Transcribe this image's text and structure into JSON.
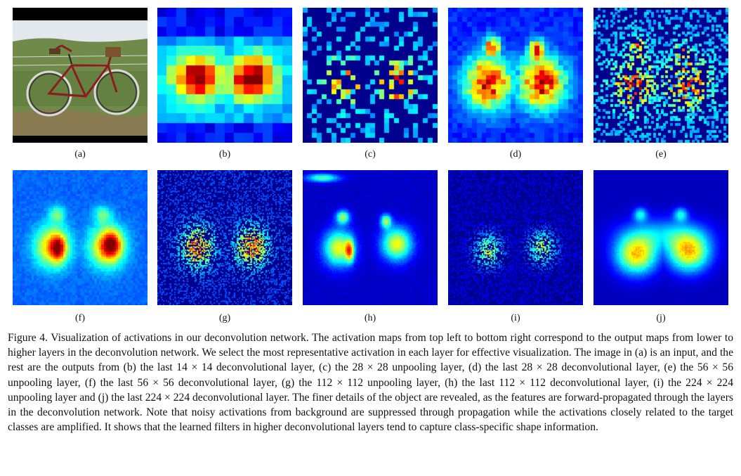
{
  "figure": {
    "panel_labels": [
      "(a)",
      "(b)",
      "(c)",
      "(d)",
      "(e)",
      "(f)",
      "(g)",
      "(h)",
      "(i)",
      "(j)"
    ],
    "caption": "Figure 4. Visualization of activations in our deconvolution network. The activation maps from top left to bottom right correspond to the output maps from lower to higher layers in the deconvolution network. We select the most representative activation in each layer for effective visualization. The image in (a) is an input, and the rest are the outputs from (b) the last 14 × 14 deconvolutional layer, (c) the 28 × 28 unpooling layer, (d) the last 28 × 28 deconvolutional layer, (e) the 56 × 56 unpooling layer, (f) the last 56 × 56 deconvolutional layer, (g) the 112 × 112 unpooling layer, (h) the last 112 × 112 deconvolutional layer, (i) the 224 × 224 unpooling layer and (j) the last 224 × 224 deconvolutional layer. The finer details of the object are revealed, as the features are forward-propagated through the layers in the deconvolution network. Note that noisy activations from background are suppressed through propagation while the activations closely related to the target classes are amplified. It shows that the learned filters in higher deconvolutional layers tend to capture class-specific shape information."
  },
  "colors": {
    "heatmap_low": "#00008f",
    "heatmap_high": "#8b0000",
    "photo_grass": "#5d7b3c",
    "photo_bike_frame": "#8a1e1e"
  },
  "icons": [
    "bicycle-photo",
    "activation-heatmap"
  ]
}
